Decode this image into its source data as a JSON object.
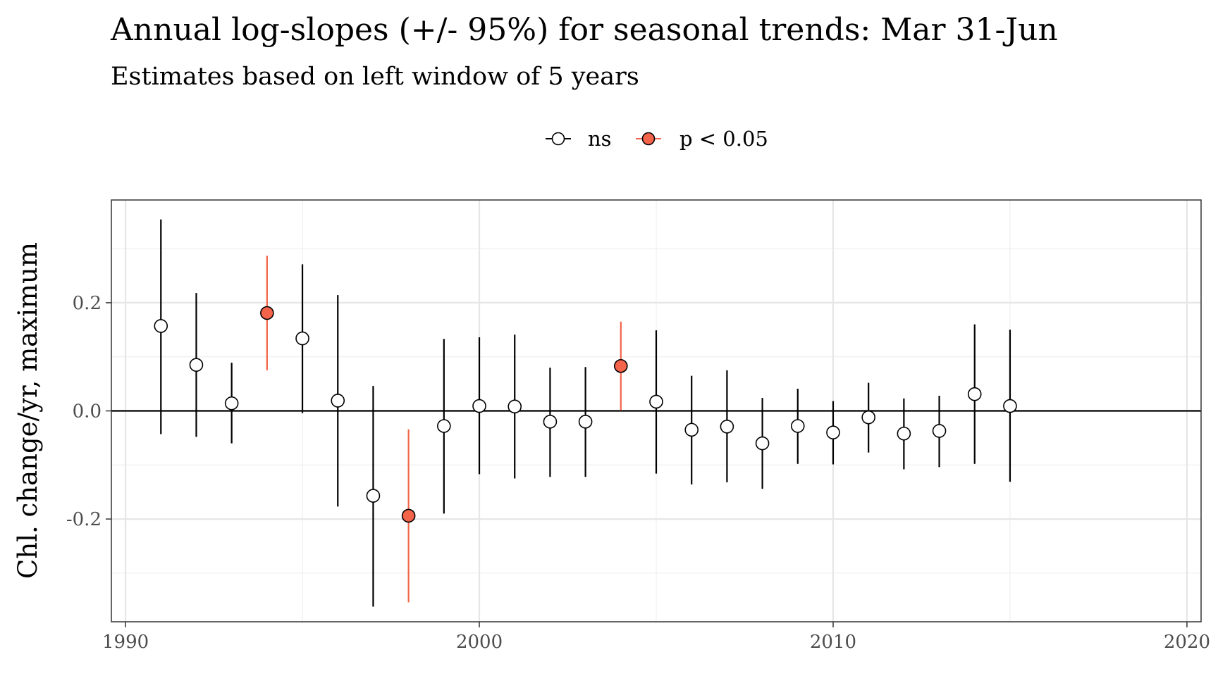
{
  "chart_data": {
    "type": "scatter",
    "title": "Annual log-slopes (+/- 95%) for seasonal trends: Mar 31-Jun",
    "subtitle": "Estimates based on left window of 5 years",
    "xlabel": "",
    "ylabel": "Chl. change/yr, maximum",
    "xlim": [
      1989.6,
      2020.4
    ],
    "ylim": [
      -0.39,
      0.39
    ],
    "x_ticks": [
      1990,
      2000,
      2010,
      2020
    ],
    "x_tick_labels": [
      "1990",
      "2000",
      "2010",
      "2020"
    ],
    "y_ticks": [
      -0.2,
      0.0,
      0.2
    ],
    "y_tick_labels": [
      "-0.2",
      "0.0",
      "0.2"
    ],
    "grid": true,
    "reference_line_y": 0,
    "legend": {
      "position": "top",
      "entries": [
        {
          "label": "ns",
          "fill": "#ffffff",
          "line": "#000000"
        },
        {
          "label": "p < 0.05",
          "fill": "#f4644a",
          "line": "#f4644a"
        }
      ]
    },
    "colors": {
      "ns_fill": "#ffffff",
      "ns_line": "#000000",
      "sig_fill": "#f4644a",
      "sig_line": "#f4644a"
    },
    "points": [
      {
        "x": 1991,
        "y": 0.157,
        "lo": -0.043,
        "hi": 0.354,
        "sig": false
      },
      {
        "x": 1992,
        "y": 0.085,
        "lo": -0.048,
        "hi": 0.218,
        "sig": false
      },
      {
        "x": 1993,
        "y": 0.014,
        "lo": -0.06,
        "hi": 0.089,
        "sig": false
      },
      {
        "x": 1994,
        "y": 0.181,
        "lo": 0.075,
        "hi": 0.287,
        "sig": true
      },
      {
        "x": 1995,
        "y": 0.134,
        "lo": -0.004,
        "hi": 0.271,
        "sig": false
      },
      {
        "x": 1996,
        "y": 0.019,
        "lo": -0.177,
        "hi": 0.214,
        "sig": false
      },
      {
        "x": 1997,
        "y": -0.157,
        "lo": -0.362,
        "hi": 0.046,
        "sig": false
      },
      {
        "x": 1998,
        "y": -0.194,
        "lo": -0.354,
        "hi": -0.034,
        "sig": true
      },
      {
        "x": 1999,
        "y": -0.028,
        "lo": -0.19,
        "hi": 0.133,
        "sig": false
      },
      {
        "x": 2000,
        "y": 0.009,
        "lo": -0.117,
        "hi": 0.136,
        "sig": false
      },
      {
        "x": 2001,
        "y": 0.008,
        "lo": -0.125,
        "hi": 0.141,
        "sig": false
      },
      {
        "x": 2002,
        "y": -0.02,
        "lo": -0.122,
        "hi": 0.08,
        "sig": false
      },
      {
        "x": 2003,
        "y": -0.02,
        "lo": -0.122,
        "hi": 0.081,
        "sig": false
      },
      {
        "x": 2004,
        "y": 0.083,
        "lo": 0.001,
        "hi": 0.165,
        "sig": true
      },
      {
        "x": 2005,
        "y": 0.017,
        "lo": -0.116,
        "hi": 0.149,
        "sig": false
      },
      {
        "x": 2006,
        "y": -0.035,
        "lo": -0.136,
        "hi": 0.065,
        "sig": false
      },
      {
        "x": 2007,
        "y": -0.029,
        "lo": -0.132,
        "hi": 0.075,
        "sig": false
      },
      {
        "x": 2008,
        "y": -0.06,
        "lo": -0.144,
        "hi": 0.024,
        "sig": false
      },
      {
        "x": 2009,
        "y": -0.028,
        "lo": -0.098,
        "hi": 0.041,
        "sig": false
      },
      {
        "x": 2010,
        "y": -0.04,
        "lo": -0.099,
        "hi": 0.018,
        "sig": false
      },
      {
        "x": 2011,
        "y": -0.012,
        "lo": -0.077,
        "hi": 0.052,
        "sig": false
      },
      {
        "x": 2012,
        "y": -0.042,
        "lo": -0.108,
        "hi": 0.023,
        "sig": false
      },
      {
        "x": 2013,
        "y": -0.037,
        "lo": -0.104,
        "hi": 0.028,
        "sig": false
      },
      {
        "x": 2014,
        "y": 0.031,
        "lo": -0.098,
        "hi": 0.16,
        "sig": false
      },
      {
        "x": 2015,
        "y": 0.009,
        "lo": -0.131,
        "hi": 0.15,
        "sig": false
      }
    ]
  }
}
